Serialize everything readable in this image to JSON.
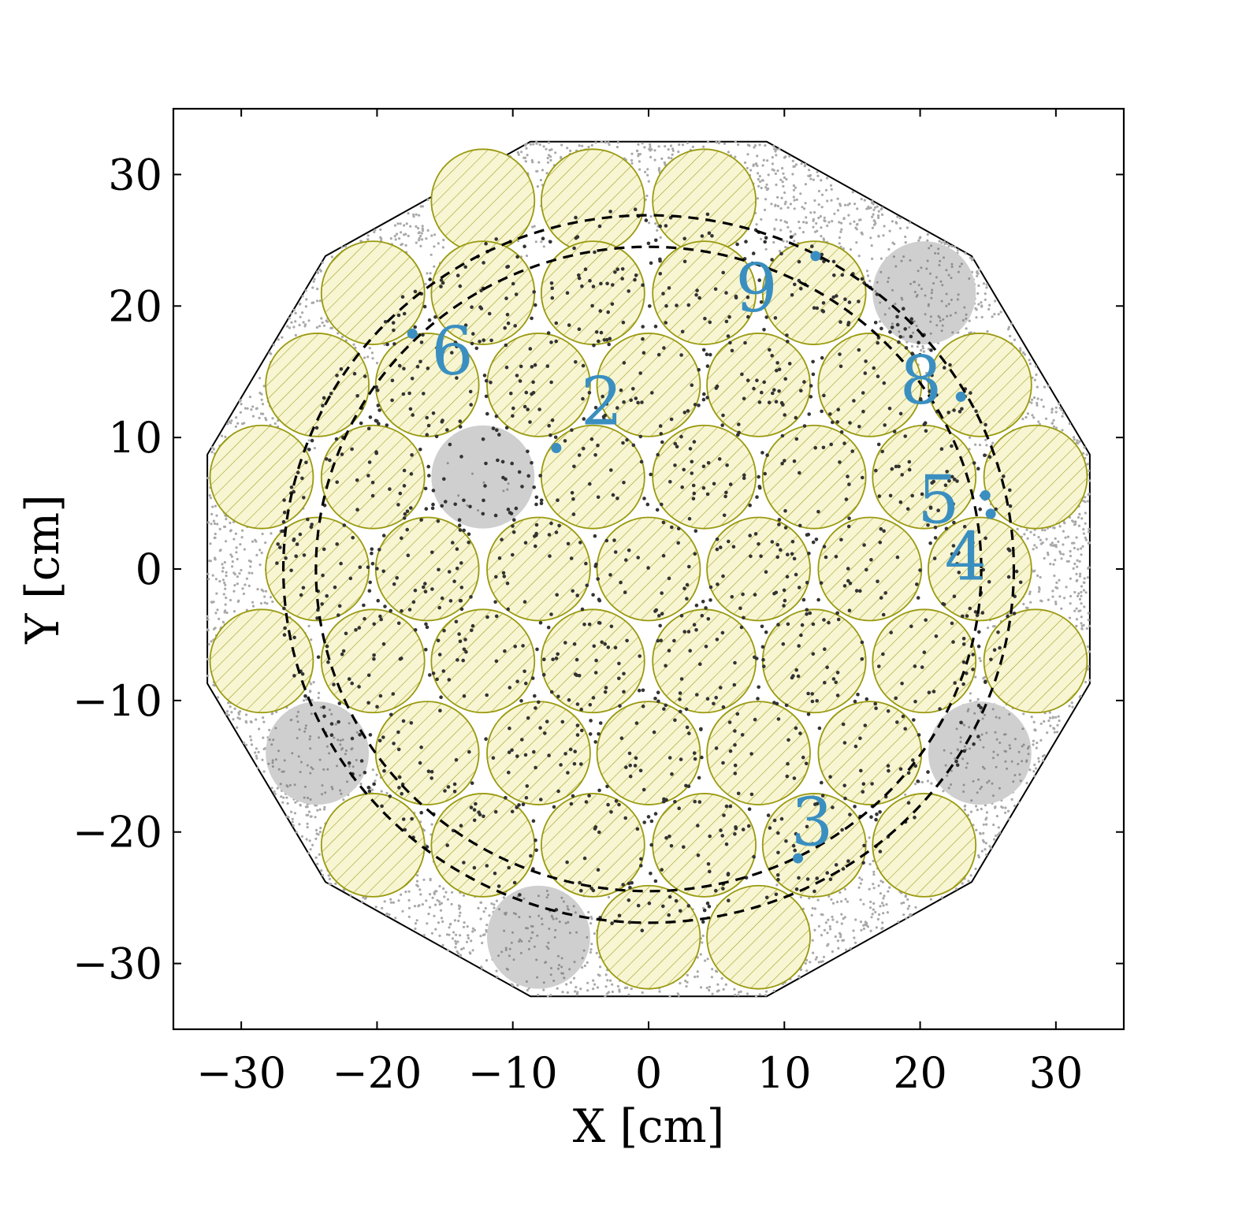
{
  "chart_data": {
    "type": "scatter",
    "xlabel": "X [cm]",
    "ylabel": "Y [cm]",
    "xlim": [
      -35,
      35
    ],
    "ylim": [
      -35,
      35
    ],
    "xticks": [
      -30,
      -20,
      -10,
      0,
      10,
      20,
      30
    ],
    "yticks": [
      -30,
      -20,
      -10,
      0,
      10,
      20,
      30
    ],
    "xtick_labels": [
      "−30",
      "−20",
      "−10",
      "0",
      "10",
      "20",
      "30"
    ],
    "ytick_labels": [
      "−30",
      "−20",
      "−10",
      "0",
      "10",
      "20",
      "30"
    ],
    "grid": false,
    "colors": {
      "detector_fill": "#f7f5d2",
      "detector_edge": "#9a9a10",
      "inactive": "#cfcfcf",
      "background_points": "#a9a9a9",
      "events": "#333333",
      "annotation": "#3a8fc0",
      "outline": "#000000"
    },
    "outline_polygon": [
      [
        -8.7,
        32.5
      ],
      [
        8.7,
        32.5
      ],
      [
        23.8,
        23.8
      ],
      [
        32.5,
        8.7
      ],
      [
        32.5,
        -8.7
      ],
      [
        23.8,
        -23.8
      ],
      [
        8.7,
        -32.5
      ],
      [
        -8.7,
        -32.5
      ],
      [
        -23.8,
        -23.8
      ],
      [
        -32.5,
        -8.7
      ],
      [
        -32.5,
        8.7
      ],
      [
        -23.8,
        23.8
      ]
    ],
    "pmt_radius": 3.8,
    "active_pmts": [
      [
        -12.2,
        28.0
      ],
      [
        -4.1,
        28.0
      ],
      [
        4.1,
        28.0
      ],
      [
        -20.3,
        21.0
      ],
      [
        -12.2,
        21.0
      ],
      [
        -4.1,
        21.0
      ],
      [
        4.1,
        21.0
      ],
      [
        12.2,
        21.0
      ],
      [
        -24.4,
        14.0
      ],
      [
        -16.3,
        14.0
      ],
      [
        -8.1,
        14.0
      ],
      [
        0,
        14.0
      ],
      [
        8.1,
        14.0
      ],
      [
        16.3,
        14.0
      ],
      [
        24.4,
        14.0
      ],
      [
        -28.5,
        7.0
      ],
      [
        -20.3,
        7.0
      ],
      [
        -4.1,
        7.0
      ],
      [
        4.1,
        7.0
      ],
      [
        12.2,
        7.0
      ],
      [
        20.3,
        7.0
      ],
      [
        28.5,
        7.0
      ],
      [
        -24.4,
        0
      ],
      [
        -16.3,
        0
      ],
      [
        -8.1,
        0
      ],
      [
        0,
        0
      ],
      [
        8.1,
        0
      ],
      [
        16.3,
        0
      ],
      [
        24.4,
        0
      ],
      [
        -28.5,
        -7.0
      ],
      [
        -20.3,
        -7.0
      ],
      [
        -12.2,
        -7.0
      ],
      [
        -4.1,
        -7.0
      ],
      [
        4.1,
        -7.0
      ],
      [
        12.2,
        -7.0
      ],
      [
        20.3,
        -7.0
      ],
      [
        28.5,
        -7.0
      ],
      [
        -16.3,
        -14.0
      ],
      [
        -8.1,
        -14.0
      ],
      [
        0,
        -14.0
      ],
      [
        8.1,
        -14.0
      ],
      [
        16.3,
        -14.0
      ],
      [
        -20.3,
        -21.0
      ],
      [
        -12.2,
        -21.0
      ],
      [
        -4.1,
        -21.0
      ],
      [
        4.1,
        -21.0
      ],
      [
        12.2,
        -21.0
      ],
      [
        20.3,
        -21.0
      ],
      [
        0,
        -28.0
      ],
      [
        8.1,
        -28.0
      ]
    ],
    "inactive_pmts": [
      [
        20.3,
        21.0
      ],
      [
        -12.2,
        7.0
      ],
      [
        -24.4,
        -14.0
      ],
      [
        24.4,
        -14.0
      ],
      [
        -8.1,
        -28.0
      ]
    ],
    "dashed_circles": [
      {
        "center": [
          0,
          0
        ],
        "radius": 26.9
      },
      {
        "center": [
          0,
          0
        ],
        "radius": 24.5
      }
    ],
    "labeled_events": [
      {
        "label": "2",
        "x": -6.8,
        "y": 9.2,
        "label_x": -5.0,
        "label_y": 11.0
      },
      {
        "label": "3",
        "x": 11.0,
        "y": -22.0,
        "label_x": 10.5,
        "label_y": -21.0
      },
      {
        "label": "4",
        "x": 25.2,
        "y": 4.2,
        "label_x": 21.8,
        "label_y": -0.8
      },
      {
        "label": "5",
        "x": 24.8,
        "y": 5.6,
        "label_x": 19.8,
        "label_y": 3.5
      },
      {
        "label": "6",
        "x": -17.4,
        "y": 17.9,
        "label_x": -16.0,
        "label_y": 14.8
      },
      {
        "label": "8",
        "x": 23.0,
        "y": 13.1,
        "label_x": 18.5,
        "label_y": 12.6
      },
      {
        "label": "9",
        "x": 12.3,
        "y": 23.8,
        "label_x": 6.4,
        "label_y": 19.6
      }
    ]
  }
}
